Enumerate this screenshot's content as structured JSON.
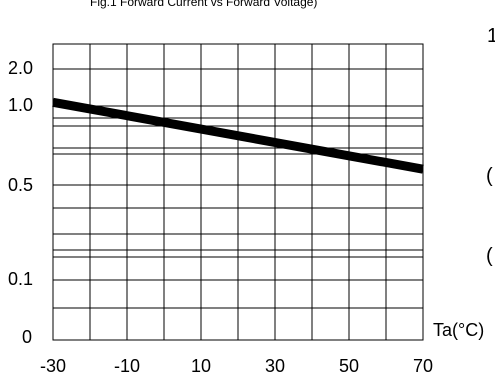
{
  "header": {
    "title_fragment": "Fig.1 Forward Current vs Forward Voltage)"
  },
  "edge_marks": [
    "1",
    "(",
    "("
  ],
  "chart_data": {
    "type": "line",
    "x": [
      -30,
      70
    ],
    "xlabel": "Ta(°C)",
    "ylabel": "",
    "xlim": [
      -30,
      70
    ],
    "x_ticks": [
      -30,
      -10,
      10,
      30,
      50,
      70
    ],
    "y_tick_labels": [
      "2.0",
      "1.0",
      "0.5",
      "0.1",
      "0"
    ],
    "grid": true,
    "series": [
      {
        "values": [
          1.1,
          0.6
        ],
        "color": "#000000"
      }
    ]
  }
}
